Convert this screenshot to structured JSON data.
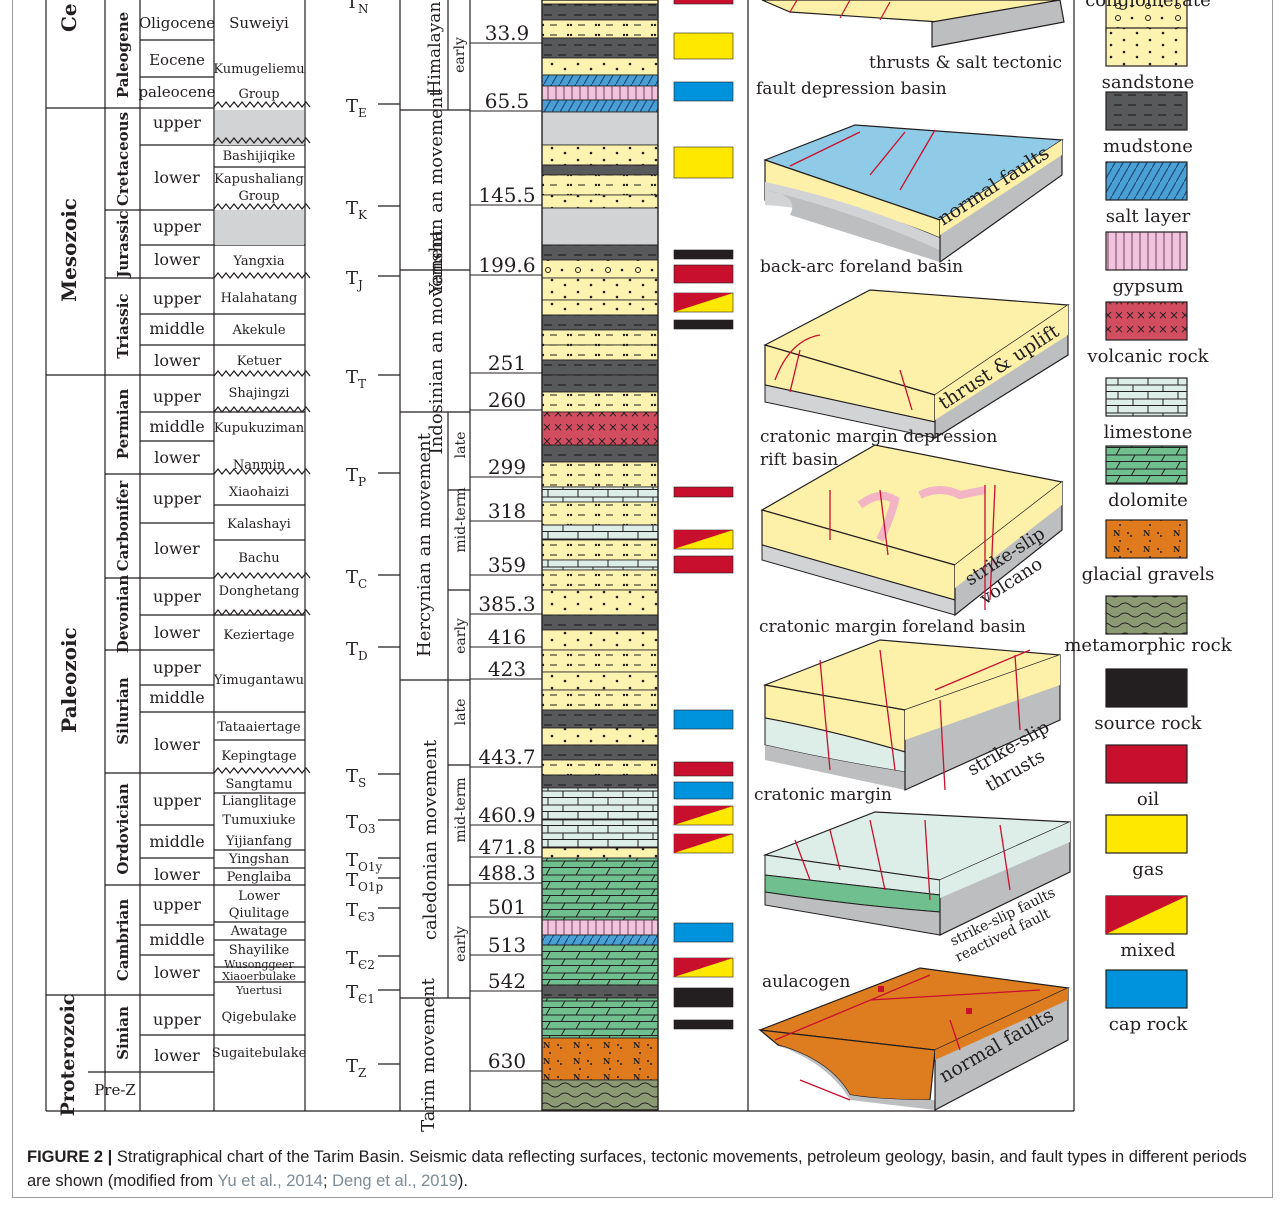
{
  "eras": [
    {
      "id": "ce",
      "label": "Ce"
    },
    {
      "id": "mesozoic",
      "label": "Mesozoic"
    },
    {
      "id": "paleozoic",
      "label": "Paleozoic"
    },
    {
      "id": "proterozoic",
      "label": "Proterozoic"
    }
  ],
  "periods": [
    {
      "id": "paleogene",
      "label": "Paleogene"
    },
    {
      "id": "cretaceous",
      "label": "Cretaceous"
    },
    {
      "id": "jurassic",
      "label": "Jurassic"
    },
    {
      "id": "triassic",
      "label": "Triassic"
    },
    {
      "id": "permian",
      "label": "Permian"
    },
    {
      "id": "carbonifer",
      "label": "Carbonifer"
    },
    {
      "id": "devonian",
      "label": "Devonian"
    },
    {
      "id": "silurian",
      "label": "Silurian"
    },
    {
      "id": "ordovician",
      "label": "Ordovician"
    },
    {
      "id": "cambrian",
      "label": "Cambrian"
    },
    {
      "id": "sinian",
      "label": "Sinian"
    },
    {
      "id": "prez",
      "label": "Pre-Z"
    }
  ],
  "epochs": [
    "Oligocene",
    "Eocene",
    "paleocene",
    "upper",
    "lower",
    "upper",
    "lower",
    "upper",
    "middle",
    "lower",
    "upper",
    "middle",
    "lower",
    "upper",
    "lower",
    "upper",
    "lower",
    "upper",
    "middle",
    "lower",
    "upper",
    "middle",
    "lower",
    "upper",
    "middle",
    "lower",
    "upper",
    "lower"
  ],
  "formations": [
    "Suweiyi",
    "Kumugeliemu",
    "Group",
    "Bashijiqike",
    "Kapushaliang",
    "Group",
    "Yangxia",
    "Halahatang",
    "Akekule",
    "Ketuer",
    "Shajingzi",
    "Kupukuziman",
    "Nanmin",
    "Xiaohaizi",
    "Kalashayi",
    "Bachu",
    "Donghetang",
    "Keziertage",
    "Yimugantawu",
    "Tataaiertage",
    "Kepingtage",
    "Sangtamu",
    "Lianglitage",
    "Tumuxiuke",
    "Yijianfang",
    "Yingshan",
    "Penglaiba",
    "Lower",
    "Qiulitage",
    "Awatage",
    "Shayilike",
    "Wusonggeer",
    "Xiaoerbulake",
    "Yuertusi",
    "Qigebulake",
    "Sugaitebulake"
  ],
  "seismic": [
    {
      "base": "T",
      "sub": "N"
    },
    {
      "base": "T",
      "sub": "E"
    },
    {
      "base": "T",
      "sub": "K"
    },
    {
      "base": "T",
      "sub": "J"
    },
    {
      "base": "T",
      "sub": "T"
    },
    {
      "base": "T",
      "sub": "P"
    },
    {
      "base": "T",
      "sub": "C"
    },
    {
      "base": "T",
      "sub": "D"
    },
    {
      "base": "T",
      "sub": "S"
    },
    {
      "base": "T",
      "sub": "O3"
    },
    {
      "base": "T",
      "sub": "O1y"
    },
    {
      "base": "T",
      "sub": "O1p"
    },
    {
      "base": "T",
      "sub": "Є3"
    },
    {
      "base": "T",
      "sub": "Є2"
    },
    {
      "base": "T",
      "sub": "Є1"
    },
    {
      "base": "T",
      "sub": "Z"
    }
  ],
  "movements": [
    {
      "id": "himalayan",
      "label": "Himalayan",
      "phases": [
        "early"
      ]
    },
    {
      "id": "yanshan",
      "label": "Yanshan an movement",
      "phases": []
    },
    {
      "id": "indosinian",
      "label": "Indosinian an movement",
      "phases": []
    },
    {
      "id": "hercynian",
      "label": "Hercynian an movement",
      "phases": [
        "late",
        "mid-term",
        "early"
      ]
    },
    {
      "id": "caledonian",
      "label": "caledonian movement",
      "phases": [
        "late",
        "mid-term",
        "early"
      ]
    },
    {
      "id": "tarim",
      "label": "Tarim movement",
      "phases": []
    }
  ],
  "ages": [
    "33.9",
    "65.5",
    "145.5",
    "199.6",
    "251",
    "260",
    "299",
    "318",
    "359",
    "385.3",
    "416",
    "423",
    "443.7",
    "460.9",
    "471.8",
    "488.3",
    "501",
    "513",
    "542",
    "630"
  ],
  "basin_labels": [
    "thrusts & salt tectonic",
    "fault depression basin",
    "normal faults",
    "back-arc foreland basin",
    "thrust & uplift",
    "cratonic margin depression",
    "rift basin",
    "strike-slip",
    "volcano",
    "cratonic margin foreland basin",
    "strike-slip",
    "thrusts",
    "cratonic margin",
    "strike-slip faults",
    "reactived fault",
    "aulacogen",
    "normal faults"
  ],
  "legend": [
    {
      "label": "conglomerate",
      "pattern": "conglomerate"
    },
    {
      "label": "sandstone",
      "pattern": "sandstone"
    },
    {
      "label": "mudstone",
      "pattern": "mudstone"
    },
    {
      "label": "salt layer",
      "pattern": "salt"
    },
    {
      "label": "gypsum",
      "pattern": "gypsum"
    },
    {
      "label": "volcanic rock",
      "pattern": "volcanic"
    },
    {
      "label": "limestone",
      "pattern": "limestone"
    },
    {
      "label": "dolomite",
      "pattern": "dolomite"
    },
    {
      "label": "glacial gravels",
      "pattern": "glacial"
    },
    {
      "label": "metamorphic rock",
      "pattern": "metamorphic"
    },
    {
      "label": "source rock",
      "pattern": "source"
    },
    {
      "label": "oil",
      "pattern": "oil"
    },
    {
      "label": "gas",
      "pattern": "gas"
    },
    {
      "label": "mixed",
      "pattern": "mixed"
    },
    {
      "label": "cap rock",
      "pattern": "cap"
    }
  ],
  "colors": {
    "oil": "#c8102e",
    "gas": "#ffe800",
    "cap": "#0093dd",
    "source": "#231f20",
    "sandstone": "#fdf3b0",
    "mudstone": "#58595b",
    "salt": "#4a9fd5",
    "gypsum": "#f1c4dd",
    "volcanic": "#d14d5f",
    "limestone": "#ddeee8",
    "dolomite": "#6fbf8f",
    "glacial": "#e07b1d",
    "metamorphic": "#8c9a74",
    "gray": "#d1d3d4",
    "basin_blue": "#8fcbe6",
    "basin_yellow": "#fdf0a8",
    "basin_green": "#9fd3b0",
    "basin_orange": "#dd7d1f"
  },
  "caption": {
    "figure_label": "FIGURE 2 |",
    "text_1": " Stratigraphical chart of the Tarim Basin. Seismic data reflecting surfaces, tectonic movements, petroleum geology, basin, and fault types in different periods are shown (modified from ",
    "ref_1": "Yu et al., 2014",
    "sep": "; ",
    "ref_2": "Deng et al., 2019",
    "text_2": ")."
  }
}
